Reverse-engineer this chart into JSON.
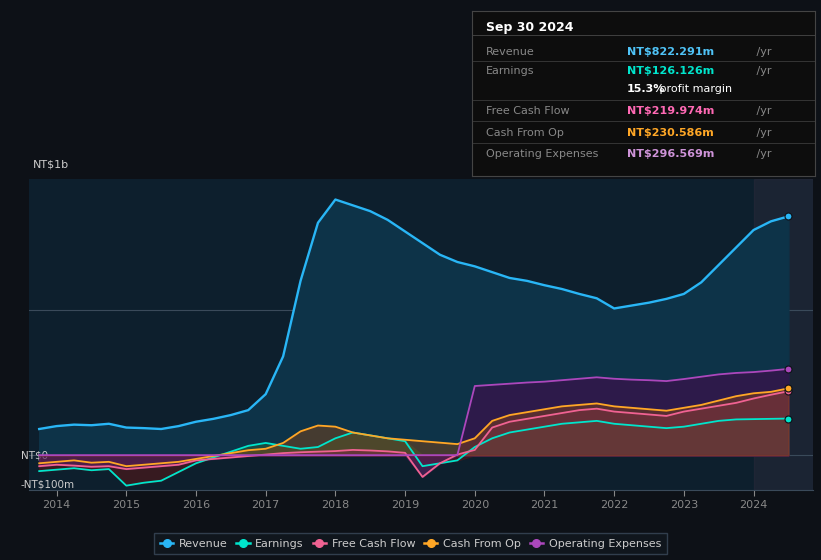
{
  "bg_color": "#0d1117",
  "plot_bg_color": "#0d1f2d",
  "title_box": {
    "date": "Sep 30 2024",
    "rows": [
      {
        "label": "Revenue",
        "value": "NT$822.291m",
        "color": "#4fc3f7"
      },
      {
        "label": "Earnings",
        "value": "NT$126.126m",
        "color": "#00e5cc"
      },
      {
        "label": "",
        "value": "15.3% profit margin",
        "color": "#ffffff"
      },
      {
        "label": "Free Cash Flow",
        "value": "NT$219.974m",
        "color": "#ff69b4"
      },
      {
        "label": "Cash From Op",
        "value": "NT$230.586m",
        "color": "#ffa726"
      },
      {
        "label": "Operating Expenses",
        "value": "NT$296.569m",
        "color": "#ce93d8"
      }
    ]
  },
  "ylabel": "NT$1b",
  "y0_label": "NT$0",
  "yn_label": "-NT$100m",
  "colors": {
    "revenue": "#29b6f6",
    "earnings": "#00e5cc",
    "free_cash_flow": "#f06292",
    "cash_from_op": "#ffa726",
    "operating_expenses": "#ab47bc"
  },
  "legend": [
    {
      "label": "Revenue",
      "color": "#29b6f6"
    },
    {
      "label": "Earnings",
      "color": "#00e5cc"
    },
    {
      "label": "Free Cash Flow",
      "color": "#f06292"
    },
    {
      "label": "Cash From Op",
      "color": "#ffa726"
    },
    {
      "label": "Operating Expenses",
      "color": "#ab47bc"
    }
  ],
  "years": [
    2013.75,
    2014.0,
    2014.25,
    2014.5,
    2014.75,
    2015.0,
    2015.25,
    2015.5,
    2015.75,
    2016.0,
    2016.25,
    2016.5,
    2016.75,
    2017.0,
    2017.25,
    2017.5,
    2017.75,
    2018.0,
    2018.25,
    2018.5,
    2018.75,
    2019.0,
    2019.25,
    2019.5,
    2019.75,
    2020.0,
    2020.25,
    2020.5,
    2020.75,
    2021.0,
    2021.25,
    2021.5,
    2021.75,
    2022.0,
    2022.25,
    2022.5,
    2022.75,
    2023.0,
    2023.25,
    2023.5,
    2023.75,
    2024.0,
    2024.25,
    2024.5
  ],
  "revenue": [
    90,
    100,
    105,
    103,
    108,
    95,
    93,
    90,
    100,
    115,
    125,
    138,
    155,
    210,
    340,
    600,
    800,
    880,
    860,
    840,
    810,
    770,
    730,
    690,
    665,
    650,
    630,
    610,
    600,
    585,
    572,
    555,
    540,
    505,
    515,
    525,
    538,
    555,
    595,
    655,
    715,
    775,
    805,
    822
  ],
  "earnings": [
    -55,
    -50,
    -45,
    -52,
    -48,
    -105,
    -95,
    -88,
    -58,
    -28,
    -8,
    12,
    32,
    42,
    32,
    22,
    28,
    58,
    78,
    68,
    58,
    48,
    -38,
    -28,
    -18,
    28,
    58,
    78,
    88,
    98,
    108,
    113,
    118,
    108,
    103,
    98,
    93,
    98,
    108,
    118,
    123,
    124,
    125,
    126
  ],
  "free_cash_flow": [
    -38,
    -33,
    -36,
    -40,
    -38,
    -48,
    -43,
    -38,
    -33,
    -18,
    -13,
    -8,
    -3,
    2,
    7,
    10,
    12,
    14,
    18,
    16,
    13,
    8,
    -75,
    -28,
    2,
    18,
    95,
    115,
    125,
    135,
    145,
    155,
    160,
    150,
    145,
    140,
    135,
    150,
    160,
    170,
    180,
    195,
    208,
    220
  ],
  "cash_from_op": [
    -28,
    -23,
    -18,
    -26,
    -23,
    -38,
    -33,
    -28,
    -23,
    -13,
    -3,
    7,
    17,
    22,
    42,
    82,
    102,
    98,
    78,
    68,
    58,
    53,
    48,
    43,
    38,
    58,
    118,
    138,
    148,
    158,
    168,
    173,
    178,
    168,
    163,
    158,
    153,
    163,
    173,
    188,
    203,
    213,
    218,
    230
  ],
  "operating_expenses": [
    0,
    0,
    0,
    0,
    0,
    0,
    0,
    0,
    0,
    0,
    0,
    0,
    0,
    0,
    0,
    0,
    0,
    0,
    0,
    0,
    0,
    0,
    0,
    0,
    0,
    238,
    242,
    246,
    250,
    253,
    258,
    263,
    268,
    263,
    260,
    258,
    255,
    262,
    270,
    278,
    283,
    286,
    291,
    297
  ],
  "xlim": [
    2013.6,
    2024.85
  ],
  "ylim_m": [
    -120,
    950
  ],
  "scale": 1000,
  "xticks": [
    2014,
    2015,
    2016,
    2017,
    2018,
    2019,
    2020,
    2021,
    2022,
    2023,
    2024
  ],
  "gridlines": [
    500,
    0
  ],
  "gray_band_start": 2024.0
}
